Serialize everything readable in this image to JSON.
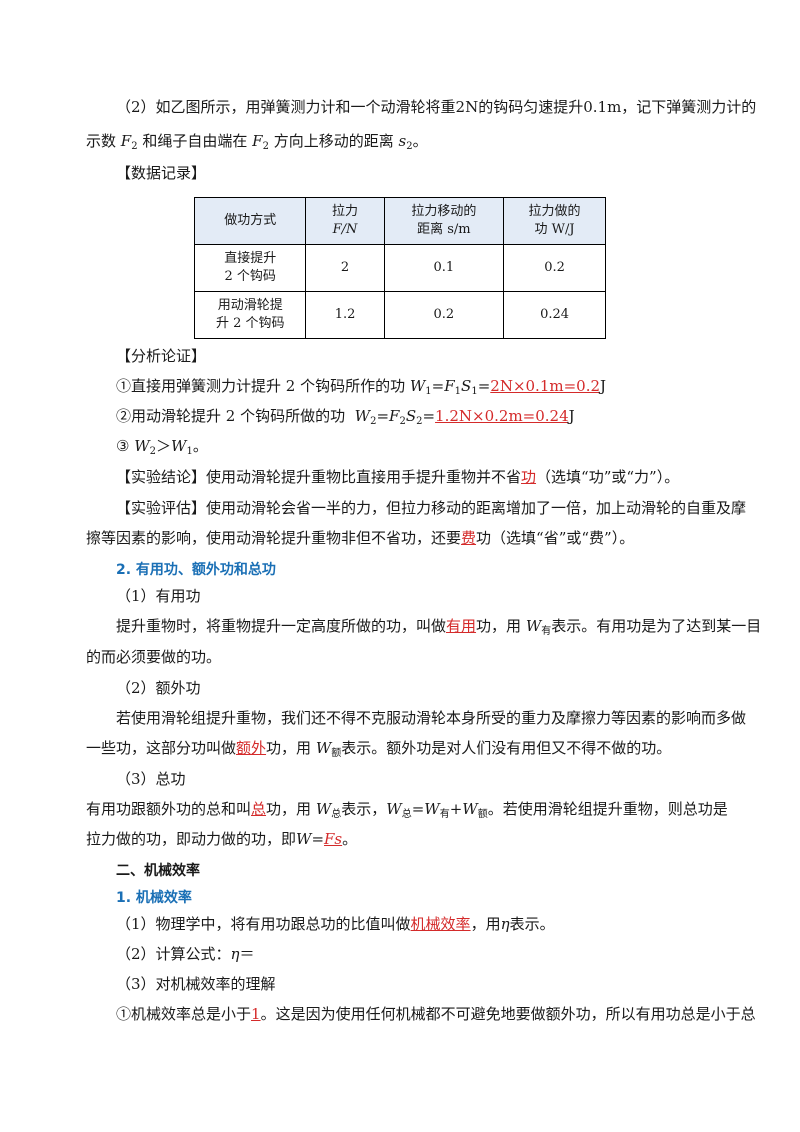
{
  "step2": {
    "line1": "（2）如乙图所示，用弹簧测力计和一个动滑轮将重2N的钩码匀速提升0.1m，记下弹簧测力计的",
    "line2a": "示数",
    "F2": "F",
    "F2sub": "2",
    "line2b": "和绳子自由端在",
    "line2c": "方向上移动的距离",
    "s2": "s",
    "s2sub": "2",
    "line2d": "。"
  },
  "data_record_title": "【数据记录】",
  "table": {
    "headers": [
      "做功方式",
      "拉力",
      "F/N",
      "拉力移动的",
      "距离 s/m",
      "拉力做的",
      "功 W/J"
    ],
    "rows": [
      [
        "直接提升",
        "2 个钩码",
        "2",
        "0.1",
        "0.2"
      ],
      [
        "用动滑轮提",
        "升 2 个钩码",
        "1.2",
        "0.2",
        "0.24"
      ]
    ]
  },
  "analysis": {
    "title": "【分析论证】",
    "item1_prefix": "①直接用弹簧测力计提升 2 个钩码所作的功",
    "item1_formula": "W",
    "item1_sub1": "1",
    "item1_eq": "=",
    "item1_F": "F",
    "item1_sub2": "1",
    "item1_S": "S",
    "item1_sub3": "1",
    "item1_eq2": "=",
    "item1_answer": "2N×0.1m=0.2",
    "item1_unit": "J",
    "item2_prefix": "②用动滑轮提升 2 个钩码所做的功",
    "item2_W": "W",
    "item2_sub1": "2",
    "item2_eq": "=",
    "item2_F": "F",
    "item2_sub2": "2",
    "item2_S": "S",
    "item2_sub3": "2",
    "item2_eq2": "=",
    "item2_answer": "1.2N×0.2m=0.24",
    "item2_unit": "J",
    "item3_prefix": "③",
    "item3_W2": "W",
    "item3_sub2": "2",
    "item3_gt": "＞",
    "item3_W1": "W",
    "item3_sub1": "1",
    "item3_end": "。"
  },
  "conclusion": {
    "prefix": "【实验结论】使用动滑轮提升重物比直接用手提升重物并不省",
    "answer": "功",
    "suffix": "（选填“功”或“力”）。"
  },
  "evaluation": {
    "line1": "【实验评估】使用动滑轮会省一半的力，但拉力移动的距离增加了一倍，加上动滑轮的自重及摩",
    "line2_prefix": "擦等因素的影响，使用动滑轮提升重物非但不省功，还要",
    "answer": "费",
    "line2_suffix": "功（选填“省”或“费”）。"
  },
  "section2_title": "2. 有用功、额外功和总功",
  "useful": {
    "title": "（1）有用功",
    "line1_prefix": "提升重物时，将重物提升一定高度所做的功，叫做",
    "answer": "有用",
    "line1_mid": "功，用",
    "W": "W",
    "sub": "有",
    "line1_suffix": "表示。有用功是为了达到某一目",
    "line2": "的而必须要做的功。"
  },
  "extra": {
    "title": "（2）额外功",
    "line1": "若使用滑轮组提升重物，我们还不得不克服动滑轮本身所受的重力及摩擦力等因素的影响而多做",
    "line2_prefix": "一些功，这部分功叫做",
    "answer": "额外",
    "line2_mid": "功，用",
    "W": "W",
    "sub": "额",
    "line2_suffix": "表示。额外功是对人们没有用但又不得不做的功。"
  },
  "total": {
    "title": "（3）总功",
    "line1_prefix": "有用功跟额外功的总和叫",
    "answer": "总",
    "line1_mid": "功，用",
    "W": "W",
    "sub": "总",
    "line1_mid2": "表示，",
    "W2": "W",
    "sub2": "总",
    "eq": "=",
    "W3": "W",
    "sub3": "有",
    "plus": "+",
    "W4": "W",
    "sub4": "额",
    "line1_suffix": "。若使用滑轮组提升重物，则总功是",
    "line2_prefix": "拉力做的功，即动力做的功，即",
    "W5": "W",
    "eq2": "=",
    "answer2": "Fs",
    "line2_suffix": "。"
  },
  "chapter2_title": "二、机械效率",
  "section_eff_title": "1. 机械效率",
  "efficiency": {
    "item1_prefix": "（1）物理学中，将有用功跟总功的比值叫做",
    "item1_answer": "机械效率",
    "item1_mid": "，用",
    "eta": "η",
    "item1_suffix": "表示。",
    "item2_prefix": "（2）计算公式：",
    "item2_eta": "η",
    "item2_eq": "＝",
    "item3": "（3）对机械效率的理解",
    "item4_prefix": "①机械效率总是小于",
    "item4_answer": "1",
    "item4_suffix": "。这是因为使用任何机械都不可避免地要做额外功，所以有用功总是小于总"
  }
}
